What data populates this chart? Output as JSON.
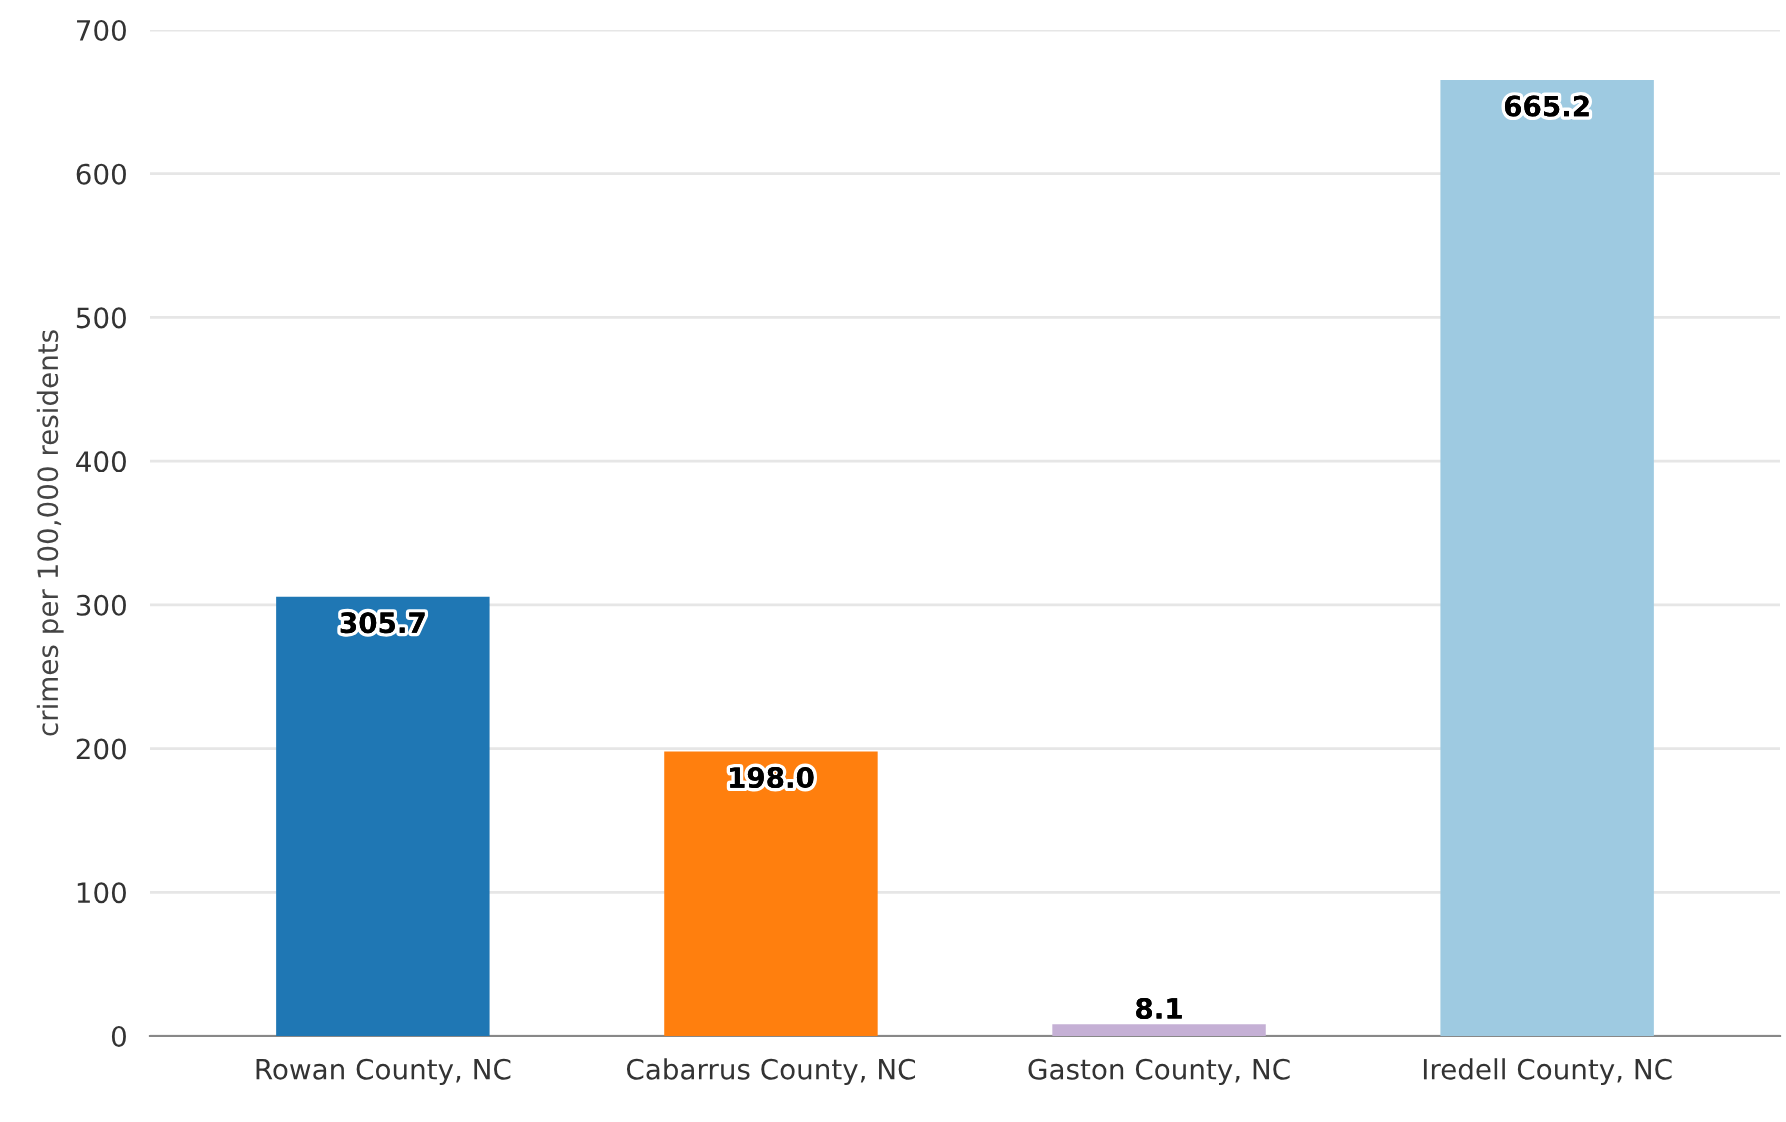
{
  "chart_data": {
    "type": "bar",
    "ylabel": "crimes per 100,000 residents",
    "categories": [
      "Rowan County, NC",
      "Cabarrus County, NC",
      "Gaston County, NC",
      "Iredell County, NC"
    ],
    "values": [
      305.7,
      198.0,
      8.1,
      665.2
    ],
    "colors": [
      "#1f77b4",
      "#ff7f0e",
      "#c5b0d5",
      "#9ecae1"
    ],
    "value_labels": [
      "305.7",
      "198.0",
      "8.1",
      "665.2"
    ],
    "ylim": [
      0,
      700
    ],
    "yticks": [
      0,
      100,
      200,
      300,
      400,
      500,
      600,
      700
    ],
    "grid": "y",
    "legend": false
  }
}
